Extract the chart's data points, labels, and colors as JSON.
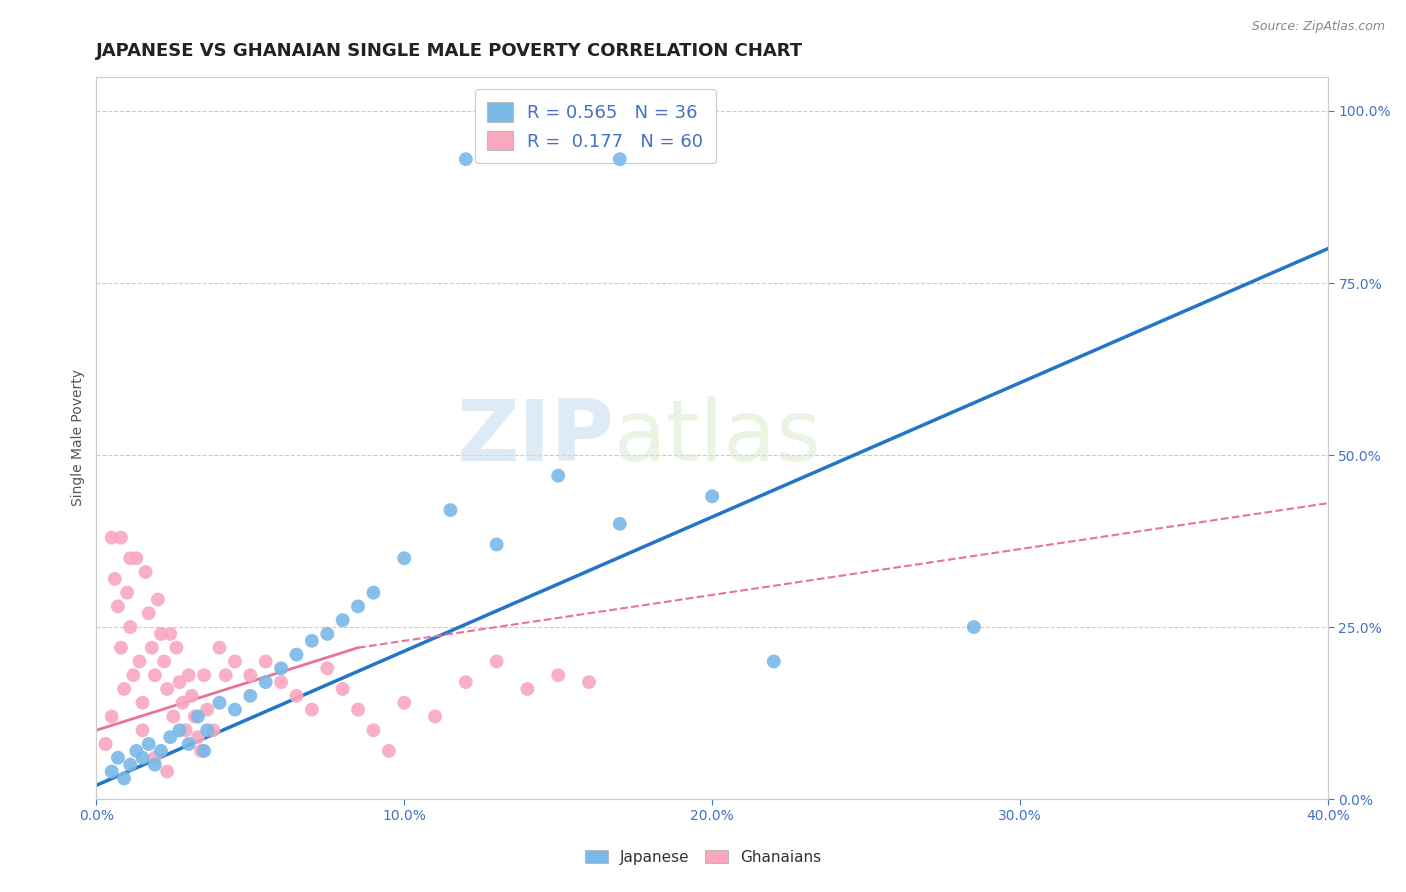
{
  "title": "JAPANESE VS GHANAIAN SINGLE MALE POVERTY CORRELATION CHART",
  "source": "Source: ZipAtlas.com",
  "ylabel": "Single Male Poverty",
  "xlim": [
    0.0,
    0.4
  ],
  "ylim": [
    0.0,
    1.05
  ],
  "xtick_labels": [
    "0.0%",
    "10.0%",
    "20.0%",
    "30.0%",
    "40.0%"
  ],
  "xtick_vals": [
    0.0,
    0.1,
    0.2,
    0.3,
    0.4
  ],
  "ytick_labels_right": [
    "0.0%",
    "25.0%",
    "50.0%",
    "75.0%",
    "100.0%"
  ],
  "ytick_vals_right": [
    0.0,
    0.25,
    0.5,
    0.75,
    1.0
  ],
  "japanese_color": "#7ab8e8",
  "ghanaian_color": "#f9a8c0",
  "japanese_line_color": "#2176c7",
  "ghanaian_line_color_solid": "#e8729a",
  "ghanaian_line_color_dash": "#e8729a",
  "R_japanese": 0.565,
  "N_japanese": 36,
  "R_ghanaian": 0.177,
  "N_ghanaian": 60,
  "watermark_zip": "ZIP",
  "watermark_atlas": "atlas",
  "background_color": "#ffffff",
  "japanese_scatter_x": [
    0.005,
    0.007,
    0.009,
    0.011,
    0.013,
    0.015,
    0.017,
    0.019,
    0.021,
    0.024,
    0.027,
    0.03,
    0.033,
    0.036,
    0.04,
    0.045,
    0.05,
    0.055,
    0.06,
    0.065,
    0.07,
    0.075,
    0.08,
    0.085,
    0.09,
    0.1,
    0.115,
    0.13,
    0.15,
    0.17,
    0.2,
    0.22,
    0.12,
    0.17,
    0.285,
    0.035
  ],
  "japanese_scatter_y": [
    0.04,
    0.06,
    0.03,
    0.05,
    0.07,
    0.06,
    0.08,
    0.05,
    0.07,
    0.09,
    0.1,
    0.08,
    0.12,
    0.1,
    0.14,
    0.13,
    0.15,
    0.17,
    0.19,
    0.21,
    0.23,
    0.24,
    0.26,
    0.28,
    0.3,
    0.35,
    0.42,
    0.37,
    0.47,
    0.4,
    0.44,
    0.2,
    0.93,
    0.93,
    0.25,
    0.07
  ],
  "ghanaian_scatter_x": [
    0.003,
    0.005,
    0.006,
    0.007,
    0.008,
    0.009,
    0.01,
    0.011,
    0.012,
    0.013,
    0.014,
    0.015,
    0.016,
    0.017,
    0.018,
    0.019,
    0.02,
    0.021,
    0.022,
    0.023,
    0.024,
    0.025,
    0.026,
    0.027,
    0.028,
    0.029,
    0.03,
    0.031,
    0.032,
    0.033,
    0.034,
    0.035,
    0.036,
    0.038,
    0.04,
    0.042,
    0.045,
    0.05,
    0.055,
    0.06,
    0.065,
    0.07,
    0.075,
    0.08,
    0.085,
    0.09,
    0.095,
    0.1,
    0.11,
    0.12,
    0.13,
    0.14,
    0.15,
    0.16,
    0.005,
    0.008,
    0.011,
    0.015,
    0.019,
    0.023
  ],
  "ghanaian_scatter_y": [
    0.08,
    0.12,
    0.32,
    0.28,
    0.22,
    0.16,
    0.3,
    0.25,
    0.18,
    0.35,
    0.2,
    0.14,
    0.33,
    0.27,
    0.22,
    0.18,
    0.29,
    0.24,
    0.2,
    0.16,
    0.24,
    0.12,
    0.22,
    0.17,
    0.14,
    0.1,
    0.18,
    0.15,
    0.12,
    0.09,
    0.07,
    0.18,
    0.13,
    0.1,
    0.22,
    0.18,
    0.2,
    0.18,
    0.2,
    0.17,
    0.15,
    0.13,
    0.19,
    0.16,
    0.13,
    0.1,
    0.07,
    0.14,
    0.12,
    0.17,
    0.2,
    0.16,
    0.18,
    0.17,
    0.38,
    0.38,
    0.35,
    0.1,
    0.06,
    0.04
  ],
  "title_fontsize": 13,
  "axis_label_fontsize": 10,
  "tick_fontsize": 10,
  "legend_fontsize": 13
}
